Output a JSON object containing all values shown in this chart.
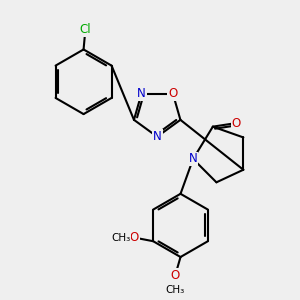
{
  "background_color": "#efefef",
  "bond_color": "#000000",
  "bond_width": 1.5,
  "atom_colors": {
    "N": "#0000cc",
    "O": "#cc0000",
    "Cl": "#00aa00",
    "C": "#000000"
  }
}
